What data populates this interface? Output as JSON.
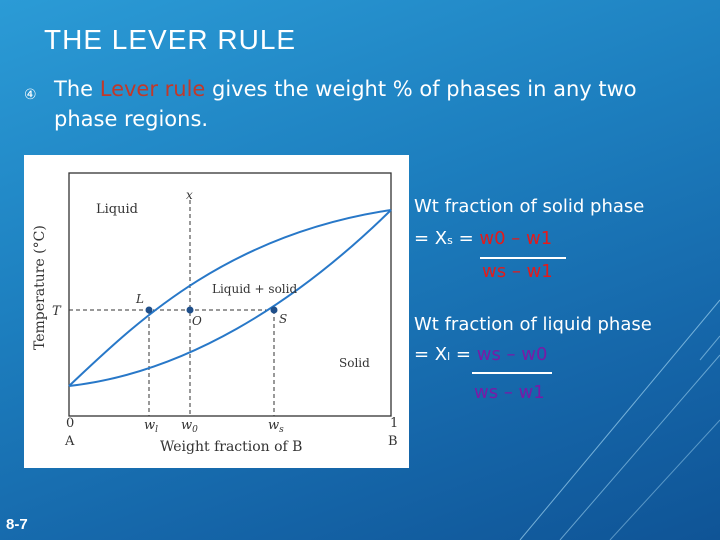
{
  "slide": {
    "title": "THE LEVER RULE",
    "bullet": {
      "pre": "The ",
      "highlight": "Lever rule",
      "post": " gives the weight % of phases in any two phase regions."
    },
    "page_number": "8-7"
  },
  "diagram": {
    "labels": {
      "liquid": "Liquid",
      "liquid_solid": "Liquid + solid",
      "solid": "Solid",
      "ylabel": "Temperature (°C)",
      "xlabel": "Weight fraction of B",
      "T": "T",
      "x": "x",
      "L": "L",
      "O": "O",
      "S": "S",
      "w_l": "w",
      "w_l_sub": "l",
      "w_0": "w",
      "w_0_sub": "0",
      "w_s": "w",
      "w_s_sub": "s",
      "tick_0": "0",
      "tick_1": "1",
      "A": "A",
      "B": "B"
    }
  },
  "text_panel": {
    "solid": {
      "heading": "Wt fraction of solid phase",
      "lhs": "= X",
      "lhs_sub": "s",
      "eq": " = ",
      "numerator": "w0 – w1",
      "denominator": "ws – w1"
    },
    "liquid": {
      "heading": "Wt fraction of liquid phase",
      "lhs": "= X",
      "lhs_sub": "l",
      "eq": " = ",
      "numerator": "ws – w0",
      "denominator": "ws – w1"
    }
  },
  "colors": {
    "accent_red": "#e31b1b",
    "accent_purple": "#7a1aa6",
    "curve_blue": "#2878c8",
    "highlight_text": "#c0392b"
  }
}
